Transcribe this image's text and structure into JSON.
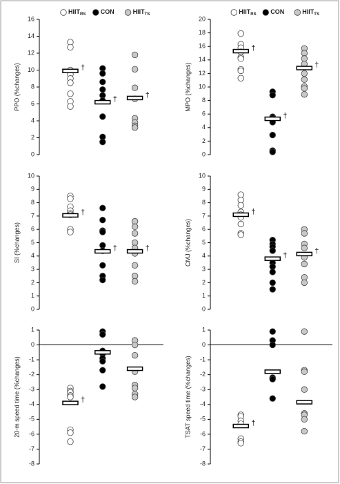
{
  "chart_data": [
    {
      "type": "dot",
      "ylabel": "PPO (%changes)",
      "ylim": [
        0,
        16
      ],
      "yticks": [
        0,
        2,
        4,
        6,
        8,
        10,
        12,
        14,
        16
      ],
      "series": [
        {
          "name": "HIIT",
          "subscript": "RS",
          "color": "#ffffff",
          "values": [
            13.3,
            12.7,
            10.0,
            9.5,
            9.0,
            8.5,
            7.2,
            6.3,
            5.7
          ],
          "mean": 9.9,
          "annotation": "†"
        },
        {
          "name": "CON",
          "color": "#000000",
          "values": [
            10.2,
            9.6,
            8.6,
            7.7,
            7.0,
            6.4,
            4.5,
            2.1,
            1.5
          ],
          "mean": 6.2,
          "annotation": "†"
        },
        {
          "name": "HIIT",
          "subscript": "TS",
          "color": "#c8c8c8",
          "values": [
            11.8,
            10.1,
            7.9,
            6.6,
            4.3,
            3.8,
            3.4,
            3.2
          ],
          "mean": 6.7,
          "annotation": "†"
        }
      ]
    },
    {
      "type": "dot",
      "ylabel": "MPO (%changes)",
      "ylim": [
        0,
        20
      ],
      "yticks": [
        0,
        2,
        4,
        6,
        8,
        10,
        12,
        14,
        16,
        18,
        20
      ],
      "series": [
        {
          "name": "HIIT",
          "subscript": "RS",
          "color": "#ffffff",
          "values": [
            17.9,
            16.3,
            15.8,
            15.2,
            14.4,
            14.2,
            12.6,
            12.4,
            11.3
          ],
          "mean": 15.3,
          "annotation": "†"
        },
        {
          "name": "CON",
          "color": "#000000",
          "values": [
            9.3,
            8.8,
            5.6,
            5.4,
            5.2,
            4.8,
            2.9,
            0.6,
            0.4
          ],
          "mean": 5.3,
          "annotation": "†"
        },
        {
          "name": "HIIT",
          "subscript": "TS",
          "color": "#c8c8c8",
          "values": [
            15.7,
            15.0,
            14.2,
            13.4,
            12.0,
            11.1,
            10.1,
            9.8,
            8.9
          ],
          "mean": 12.8,
          "annotation": "†"
        }
      ]
    },
    {
      "type": "dot",
      "ylabel": "SI (%changes)",
      "ylim": [
        0,
        10
      ],
      "yticks": [
        0,
        1,
        2,
        3,
        4,
        5,
        6,
        7,
        8,
        9,
        10
      ],
      "series": [
        {
          "color": "#ffffff",
          "values": [
            8.5,
            8.3,
            7.7,
            7.4,
            7.2,
            7.1,
            6.0,
            5.8
          ],
          "mean": 7.05,
          "annotation": "†"
        },
        {
          "color": "#000000",
          "values": [
            7.6,
            6.7,
            5.9,
            5.8,
            4.8,
            4.4,
            3.3,
            2.5,
            2.2
          ],
          "mean": 4.35,
          "annotation": "†"
        },
        {
          "color": "#c8c8c8",
          "values": [
            6.6,
            6.2,
            5.7,
            5.0,
            4.6,
            4.2,
            3.3,
            2.5,
            2.1
          ],
          "mean": 4.35,
          "annotation": "†"
        }
      ]
    },
    {
      "type": "dot",
      "ylabel": "CMJ (%changes)",
      "ylim": [
        0,
        10
      ],
      "yticks": [
        0,
        1,
        2,
        3,
        4,
        5,
        6,
        7,
        8,
        9,
        10
      ],
      "series": [
        {
          "color": "#ffffff",
          "values": [
            8.6,
            8.2,
            7.8,
            7.3,
            7.1,
            6.9,
            6.4,
            5.7,
            5.6
          ],
          "mean": 7.1,
          "annotation": "†"
        },
        {
          "color": "#000000",
          "values": [
            5.2,
            4.9,
            4.7,
            4.4,
            3.5,
            3.2,
            2.8,
            2.0,
            1.5
          ],
          "mean": 3.8,
          "annotation": "†"
        },
        {
          "color": "#c8c8c8",
          "values": [
            6.0,
            5.7,
            4.9,
            4.6,
            3.9,
            3.4,
            2.4,
            2.0
          ],
          "mean": 4.15,
          "annotation": "†"
        }
      ]
    },
    {
      "type": "dot",
      "ylabel": "20-m speed time (%changes)",
      "ylim": [
        -8,
        1
      ],
      "yticks": [
        -8,
        -7,
        -6,
        -5,
        -4,
        -3,
        -2,
        -1,
        0,
        1
      ],
      "zero_line": true,
      "series": [
        {
          "color": "#ffffff",
          "values": [
            -2.9,
            -3.1,
            -3.2,
            -3.4,
            -3.5,
            -5.7,
            -5.9,
            -6.5
          ],
          "mean": -3.9,
          "annotation": "†"
        },
        {
          "color": "#000000",
          "values": [
            0.9,
            0.7,
            -0.4,
            -0.6,
            -0.9,
            -1.1,
            -1.7,
            -2.8
          ],
          "mean": -0.5
        },
        {
          "color": "#c8c8c8",
          "values": [
            0.3,
            0.0,
            -0.7,
            -1.8,
            -2.7,
            -2.9,
            -3.3,
            -3.5
          ],
          "mean": -1.6
        }
      ]
    },
    {
      "type": "dot",
      "ylabel": "TSAT speed time (%changes)",
      "ylim": [
        -8,
        1
      ],
      "yticks": [
        -8,
        -7,
        -6,
        -5,
        -4,
        -3,
        -2,
        -1,
        0,
        1
      ],
      "zero_line": true,
      "series": [
        {
          "color": "#ffffff",
          "values": [
            -4.7,
            -4.8,
            -5.1,
            -5.3,
            -6.3,
            -6.5,
            -6.6
          ],
          "mean": -5.45,
          "annotation": "†"
        },
        {
          "color": "#000000",
          "values": [
            0.9,
            0.3,
            0.0,
            -2.2,
            -2.3,
            -3.6
          ],
          "mean": -1.8
        },
        {
          "color": "#c8c8c8",
          "values": [
            0.9,
            -1.7,
            -1.8,
            -3.0,
            -4.6,
            -4.7,
            -5.0,
            -5.8
          ],
          "mean": -3.85
        }
      ]
    }
  ]
}
